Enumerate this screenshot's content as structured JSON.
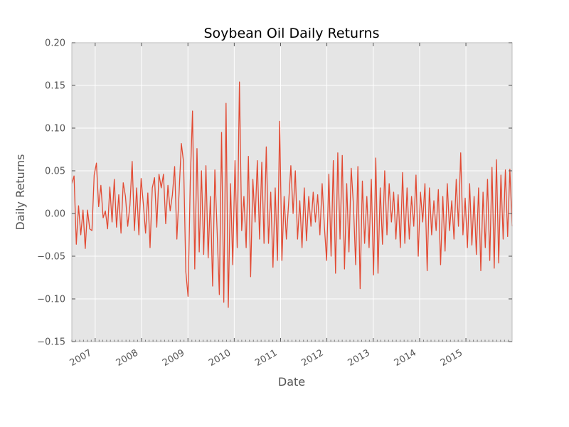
{
  "chart_data": {
    "type": "line",
    "title": "Soybean Oil Daily Returns",
    "xlabel": "Date",
    "ylabel": "Daily Returns",
    "ylim": [
      -0.15,
      0.2
    ],
    "xlim": [
      "2006-07-01",
      "2015-12-31"
    ],
    "yticks": [
      "−0.15",
      "−0.10",
      "−0.05",
      "0.00",
      "0.05",
      "0.10",
      "0.15",
      "0.20"
    ],
    "ytick_values": [
      -0.15,
      -0.1,
      -0.05,
      0.0,
      0.05,
      0.1,
      0.15,
      0.2
    ],
    "xticks": [
      "2007",
      "2008",
      "2009",
      "2010",
      "2011",
      "2012",
      "2013",
      "2014",
      "2015"
    ],
    "grid": true,
    "colors": {
      "line": "#e24a33",
      "plot_bg": "#e5e5e5",
      "grid": "#ffffff"
    },
    "series": [
      {
        "values": [
          0.035,
          0.044,
          -0.036,
          0.009,
          -0.025,
          0.004,
          -0.041,
          0.004,
          -0.018,
          -0.02,
          0.045,
          0.059,
          0.008,
          0.033,
          -0.005,
          0.003,
          -0.018,
          0.031,
          -0.01,
          0.04,
          -0.016,
          0.022,
          -0.023,
          0.036,
          0.02,
          -0.015,
          0.01,
          0.061,
          -0.02,
          0.03,
          -0.025,
          0.041,
          0.011,
          -0.023,
          0.024,
          -0.04,
          0.03,
          0.042,
          -0.016,
          0.046,
          0.03,
          0.046,
          -0.012,
          0.033,
          0.003,
          0.022,
          0.055,
          -0.03,
          0.025,
          0.082,
          0.06,
          -0.068,
          -0.097,
          0.038,
          0.12,
          -0.065,
          0.076,
          -0.045,
          0.05,
          -0.048,
          0.056,
          -0.052,
          0.02,
          -0.085,
          0.051,
          -0.02,
          -0.095,
          0.095,
          -0.104,
          0.129,
          -0.11,
          0.035,
          -0.06,
          0.062,
          -0.04,
          0.154,
          -0.02,
          0.02,
          -0.04,
          0.067,
          -0.074,
          0.04,
          -0.01,
          0.062,
          -0.03,
          0.06,
          -0.035,
          0.078,
          -0.035,
          0.025,
          -0.063,
          0.03,
          -0.055,
          0.108,
          -0.055,
          0.02,
          -0.03,
          0.012,
          0.056,
          0.0,
          0.05,
          -0.03,
          0.015,
          -0.04,
          0.03,
          -0.032,
          0.02,
          -0.015,
          0.025,
          -0.01,
          0.022,
          -0.025,
          0.035,
          -0.015,
          -0.055,
          0.046,
          -0.05,
          0.062,
          -0.07,
          0.071,
          -0.03,
          0.068,
          -0.065,
          0.035,
          -0.045,
          0.053,
          0.01,
          -0.06,
          0.055,
          -0.088,
          0.038,
          -0.035,
          0.02,
          -0.04,
          0.04,
          -0.072,
          0.065,
          -0.07,
          0.03,
          -0.036,
          0.05,
          -0.025,
          0.035,
          -0.01,
          0.025,
          -0.03,
          0.022,
          -0.04,
          0.048,
          -0.035,
          0.03,
          -0.03,
          0.02,
          -0.015,
          0.045,
          -0.05,
          0.025,
          -0.01,
          0.035,
          -0.067,
          0.03,
          -0.025,
          0.015,
          -0.02,
          0.028,
          -0.06,
          0.02,
          -0.044,
          0.035,
          -0.02,
          0.015,
          -0.03,
          0.04,
          -0.015,
          0.071,
          -0.025,
          0.018,
          -0.04,
          0.035,
          -0.037,
          0.02,
          -0.048,
          0.03,
          -0.067,
          0.025,
          -0.04,
          0.04,
          -0.055,
          0.054,
          -0.064,
          0.063,
          -0.058,
          0.045,
          -0.03,
          0.051,
          -0.027,
          0.052,
          -0.015
        ]
      }
    ]
  }
}
